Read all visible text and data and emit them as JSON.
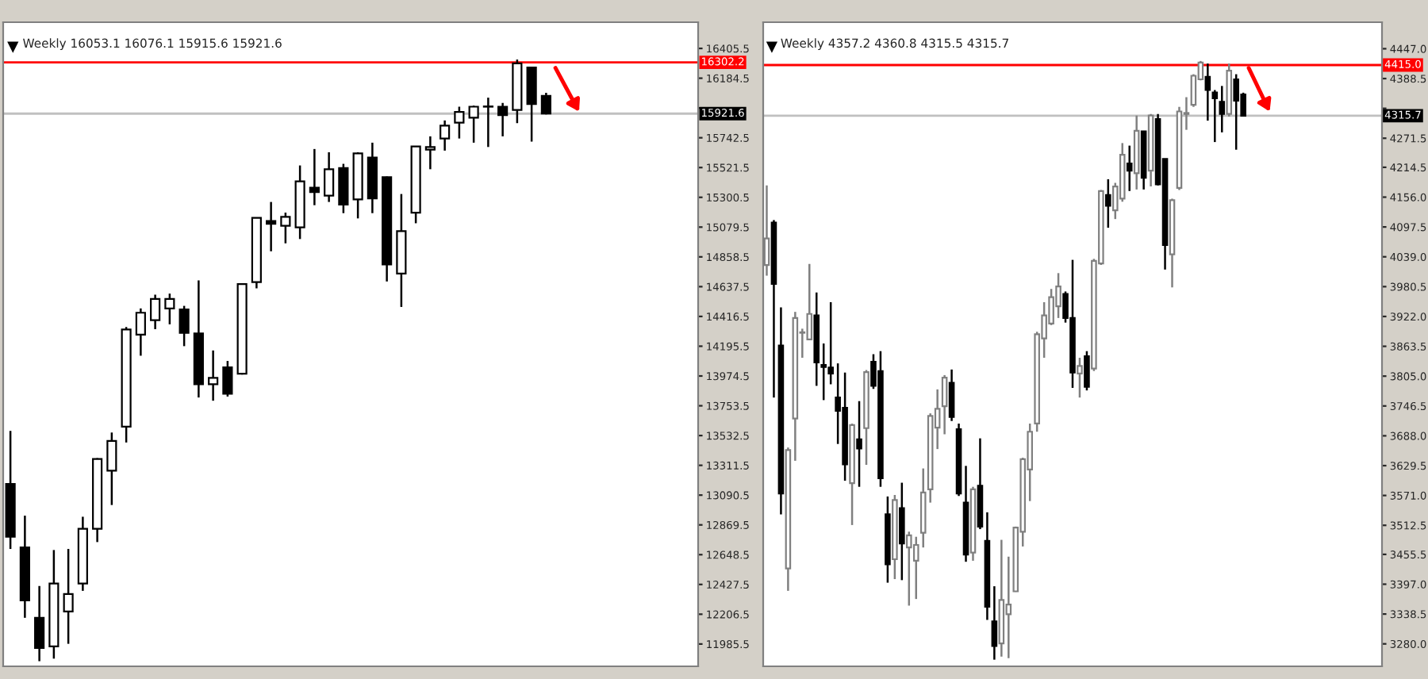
{
  "chart_data": [
    {
      "type": "candlestick",
      "title": "Weekly 16053.1 16076.1 15915.6 15921.6",
      "categories": [
        null,
        null,
        null,
        null,
        null,
        null,
        null,
        null,
        null,
        null,
        null,
        null,
        null,
        null,
        null,
        null,
        null,
        null,
        null,
        null,
        null,
        null,
        null,
        null,
        null,
        null,
        null,
        null,
        null,
        null,
        null,
        null,
        null,
        null,
        null,
        null,
        null,
        null,
        null,
        null,
        null,
        null,
        null,
        null,
        null,
        null,
        null,
        null
      ],
      "ohlc": [
        [
          13174,
          13567,
          12691,
          12781
        ],
        [
          12702,
          12938,
          12180,
          12309
        ],
        [
          12180,
          12416,
          11858,
          11956
        ],
        [
          11968,
          12683,
          11877,
          12435
        ],
        [
          12227,
          12691,
          11987,
          12357
        ],
        [
          12435,
          12930,
          12380,
          12840
        ],
        [
          12840,
          13365,
          12742,
          13359
        ],
        [
          13272,
          13555,
          13017,
          13492
        ],
        [
          13598,
          14338,
          13481,
          14319
        ],
        [
          14282,
          14476,
          14125,
          14444
        ],
        [
          14389,
          14578,
          14322,
          14546
        ],
        [
          14476,
          14586,
          14358,
          14546
        ],
        [
          14468,
          14495,
          14196,
          14295
        ],
        [
          14291,
          14684,
          13815,
          13913
        ],
        [
          13913,
          14164,
          13791,
          13960
        ],
        [
          14039,
          14086,
          13822,
          13842
        ],
        [
          13992,
          14660,
          13985,
          14656
        ],
        [
          14672,
          15150,
          14625,
          15148
        ],
        [
          15124,
          15266,
          14900,
          15104
        ],
        [
          15089,
          15187,
          14959,
          15156
        ],
        [
          15077,
          15537,
          14991,
          15419
        ],
        [
          15372,
          15659,
          15242,
          15340
        ],
        [
          15313,
          15635,
          15266,
          15509
        ],
        [
          15517,
          15549,
          15183,
          15246
        ],
        [
          15285,
          15635,
          15144,
          15627
        ],
        [
          15596,
          15706,
          15183,
          15293
        ],
        [
          15450,
          15455,
          14676,
          14802
        ],
        [
          14735,
          15325,
          14487,
          15049
        ],
        [
          15187,
          15680,
          15108,
          15678
        ],
        [
          15655,
          15753,
          15509,
          15674
        ],
        [
          15737,
          15871,
          15647,
          15832
        ],
        [
          15855,
          15973,
          15737,
          15934
        ],
        [
          15891,
          15981,
          15706,
          15973
        ],
        [
          15973,
          16040,
          15674,
          15975
        ],
        [
          15973,
          16001,
          15753,
          15910
        ],
        [
          15949,
          16323,
          15851,
          16295
        ],
        [
          16264,
          16266,
          15714,
          15993
        ],
        [
          16053.1,
          16076.1,
          15915.6,
          15921.6
        ],
        null,
        null,
        null,
        null,
        null,
        null,
        null,
        null,
        null,
        null
      ],
      "ylim": [
        11820,
        16600
      ],
      "yticks": [
        16405.5,
        16184.5,
        {
          "value": 15963.5,
          "label": null
        },
        15742.5,
        15521.5,
        15300.5,
        15079.5,
        14858.5,
        14637.5,
        14416.5,
        14195.5,
        13974.5,
        13753.5,
        13532.5,
        13311.5,
        13090.5,
        12869.5,
        12648.5,
        12427.5,
        12206.5,
        11985.5
      ],
      "tick_labels": "y",
      "grid": false,
      "legend": false,
      "ref_lines": [
        {
          "axis": "y",
          "value": 16302.2,
          "label": "16302.2",
          "color": "#ff0000"
        },
        {
          "axis": "y",
          "value": 15921.6,
          "label": "15921.6",
          "color": "#c0c0c0"
        }
      ]
    },
    {
      "type": "candlestick",
      "title": "Weekly 4357.2 4360.8 4315.5 4315.7",
      "categories": [
        null,
        null,
        null,
        null,
        null,
        null,
        null,
        null,
        null,
        null,
        null,
        null,
        null,
        null,
        null,
        null,
        null,
        null,
        null,
        null,
        null,
        null,
        null,
        null,
        null,
        null,
        null,
        null,
        null,
        null,
        null,
        null,
        null,
        null,
        null,
        null,
        null,
        null,
        null,
        null,
        null,
        null,
        null,
        null,
        null,
        null,
        null,
        null,
        null,
        null,
        null,
        null,
        null,
        null,
        null,
        null,
        null,
        null,
        null,
        null,
        null,
        null,
        null,
        null,
        null,
        null,
        null,
        null,
        null,
        null,
        null,
        null,
        null,
        null,
        null,
        null,
        null,
        null,
        null,
        null,
        null,
        null,
        null,
        null,
        null,
        null,
        null
      ],
      "ohlc": [
        [
          4023,
          4179,
          4002,
          4075
        ],
        [
          4106,
          4111,
          3763,
          3986
        ],
        [
          3865,
          3940,
          3534,
          3575
        ],
        [
          3428,
          3665,
          3384,
          3660
        ],
        [
          3722,
          3931,
          3639,
          3919
        ],
        [
          3890,
          3898,
          3841,
          3891
        ],
        [
          3877,
          4025,
          3876,
          3927
        ],
        [
          3924,
          3969,
          3786,
          3832
        ],
        [
          3827,
          3869,
          3758,
          3823
        ],
        [
          3822,
          3950,
          3789,
          3810
        ],
        [
          3763,
          3830,
          3672,
          3737
        ],
        [
          3743,
          3812,
          3600,
          3632
        ],
        [
          3595,
          3712,
          3513,
          3709
        ],
        [
          3681,
          3756,
          3588,
          3663
        ],
        [
          3703,
          3817,
          3631,
          3813
        ],
        [
          3833,
          3848,
          3780,
          3786
        ],
        [
          3815,
          3854,
          3588,
          3605
        ],
        [
          3534,
          3569,
          3400,
          3436
        ],
        [
          3446,
          3572,
          3407,
          3562
        ],
        [
          3546,
          3596,
          3405,
          3477
        ],
        [
          3469,
          3500,
          3355,
          3493
        ],
        [
          3443,
          3490,
          3368,
          3474
        ],
        [
          3498,
          3624,
          3469,
          3577
        ],
        [
          3583,
          3732,
          3557,
          3727
        ],
        [
          3704,
          3779,
          3662,
          3741
        ],
        [
          3746,
          3807,
          3691,
          3802
        ],
        [
          3792,
          3818,
          3717,
          3725
        ],
        [
          3701,
          3712,
          3570,
          3575
        ],
        [
          3557,
          3629,
          3441,
          3455
        ],
        [
          3459,
          3588,
          3443,
          3583
        ],
        [
          3590,
          3683,
          3505,
          3510
        ],
        [
          3482,
          3538,
          3327,
          3353
        ],
        [
          3324,
          3393,
          3249,
          3276
        ],
        [
          3281,
          3484,
          3255,
          3366
        ],
        [
          3338,
          3451,
          3252,
          3357
        ],
        [
          3383,
          3510,
          3382,
          3508
        ],
        [
          3500,
          3645,
          3471,
          3642
        ],
        [
          3622,
          3712,
          3560,
          3696
        ],
        [
          3712,
          3892,
          3696,
          3887
        ],
        [
          3879,
          3950,
          3841,
          3924
        ],
        [
          3908,
          3976,
          3905,
          3960
        ],
        [
          3942,
          4007,
          3919,
          3981
        ],
        [
          3966,
          3971,
          3910,
          3919
        ],
        [
          3919,
          4033,
          3782,
          3812
        ],
        [
          3810,
          3841,
          3763,
          3825
        ],
        [
          3844,
          3854,
          3777,
          3784
        ],
        [
          3820,
          4035,
          3815,
          4031
        ],
        [
          4026,
          4170,
          4023,
          4168
        ],
        [
          4160,
          4191,
          4096,
          4139
        ],
        [
          4130,
          4184,
          4113,
          4177
        ],
        [
          4153,
          4262,
          4147,
          4239
        ],
        [
          4222,
          4257,
          4168,
          4208
        ],
        [
          4203,
          4316,
          4171,
          4286
        ],
        [
          4285,
          4286,
          4171,
          4194
        ],
        [
          4208,
          4319,
          4177,
          4316
        ],
        [
          4309,
          4319,
          4179,
          4181
        ],
        [
          4231,
          4231,
          4014,
          4062
        ],
        [
          4044,
          4153,
          3979,
          4150
        ],
        [
          4174,
          4333,
          4170,
          4324
        ],
        [
          4319,
          4352,
          4288,
          4321
        ],
        [
          4337,
          4397,
          4333,
          4394
        ],
        [
          4387,
          4423,
          4385,
          4420
        ],
        [
          4392,
          4418,
          4306,
          4366
        ],
        [
          4361,
          4366,
          4264,
          4350
        ],
        [
          4343,
          4374,
          4283,
          4319
        ],
        [
          4319,
          4418,
          4314,
          4404
        ],
        [
          4387,
          4397,
          4249,
          4345
        ],
        [
          4357.2,
          4360.8,
          4315.5,
          4315.7
        ],
        null,
        null,
        null,
        null,
        null,
        null,
        null,
        null,
        null,
        null,
        null,
        null,
        null,
        null,
        null,
        null,
        null,
        null,
        null
      ],
      "ylim": [
        3236,
        4499
      ],
      "yticks": [
        {
          "value": 4447,
          "label": "4447.0"
        },
        4388.5,
        {
          "value": 4330,
          "label": null
        },
        4271.5,
        4214.5,
        {
          "value": 4156,
          "label": "4156.0"
        },
        4097.5,
        {
          "value": 4039,
          "label": "4039.0"
        },
        3980.5,
        {
          "value": 3922,
          "label": "3922.0"
        },
        3863.5,
        {
          "value": 3805,
          "label": "3805.0"
        },
        3746.5,
        {
          "value": 3688,
          "label": "3688.0"
        },
        3629.5,
        {
          "value": 3571,
          "label": "3571.0"
        },
        3512.5,
        3455.5,
        {
          "value": 3397,
          "label": "3397.0"
        },
        3338.5,
        {
          "value": 3280,
          "label": "3280.0"
        }
      ],
      "tick_labels": "y",
      "grid": false,
      "legend": false,
      "ref_lines": [
        {
          "axis": "y",
          "value": 4415.0,
          "label": "4415.0",
          "color": "#ff0000"
        },
        {
          "axis": "y",
          "value": 4315.7,
          "label": "4315.7",
          "color": "#c0c0c0"
        }
      ]
    }
  ]
}
